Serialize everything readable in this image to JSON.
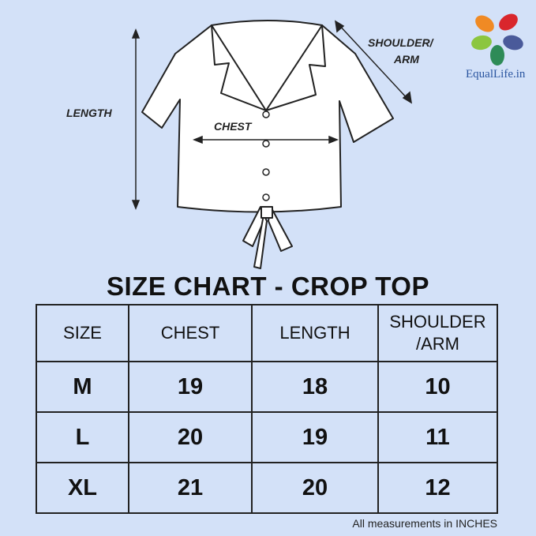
{
  "diagram": {
    "labels": {
      "length": "LENGTH",
      "chest": "CHEST",
      "shoulder_line1": "SHOULDER/",
      "shoulder_line2": "ARM"
    }
  },
  "logo": {
    "text": "EqualLife.in",
    "colors": [
      "#f08a24",
      "#d9262c",
      "#8cc63f",
      "#4a5a9a",
      "#2e8b57"
    ]
  },
  "title": "SIZE CHART - CROP TOP",
  "table": {
    "headers": [
      "SIZE",
      "CHEST",
      "LENGTH",
      "SHOULDER",
      "/ARM"
    ],
    "rows": [
      [
        "M",
        "19",
        "18",
        "10"
      ],
      [
        "L",
        "20",
        "19",
        "11"
      ],
      [
        "XL",
        "21",
        "20",
        "12"
      ]
    ]
  },
  "note": "All measurements in INCHES",
  "colors": {
    "background": "#d3e1f8",
    "border": "#222222"
  }
}
